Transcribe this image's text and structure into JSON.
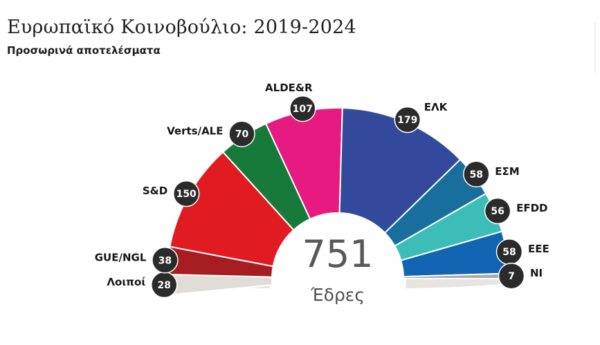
{
  "header": {
    "title": "Ευρωπαϊκό Κοινοβούλιο: 2019-2024",
    "subtitle": "Προσωρινά αποτελέσματα"
  },
  "chart_data": {
    "type": "parliament-hemicycle",
    "title": "Ευρωπαϊκό Κοινοβούλιο: 2019-2024",
    "subtitle": "Προσωρινά αποτελέσματα",
    "total": 751,
    "total_label": "751",
    "seats_word": "Έδρες",
    "arc_span_degrees": 185.5,
    "legend_position": "labels-around-arc",
    "series": [
      {
        "name": "Λοιποί",
        "seats": 28,
        "color": "#e0ddd8"
      },
      {
        "name": "GUE/NGL",
        "seats": 38,
        "color": "#a51d21"
      },
      {
        "name": "S&D",
        "seats": 150,
        "color": "#e11b22"
      },
      {
        "name": "Verts/ALE",
        "seats": 70,
        "color": "#17793a"
      },
      {
        "name": "ALDE&R",
        "seats": 107,
        "color": "#e61a80"
      },
      {
        "name": "ΕΛΚ",
        "seats": 179,
        "color": "#33499b"
      },
      {
        "name": "ΕΣΜ",
        "seats": 58,
        "color": "#186e9c"
      },
      {
        "name": "EFDD",
        "seats": 56,
        "color": "#3dbdb8"
      },
      {
        "name": "EEE",
        "seats": 58,
        "color": "#1265b2"
      },
      {
        "name": "NI",
        "seats": 7,
        "color": "#a8aaa7"
      }
    ],
    "colors": {
      "badge_bg": "#2b2b2b",
      "badge_text": "#ffffff",
      "shadow": "#e7e5e0",
      "center_text": "#58585a"
    }
  }
}
